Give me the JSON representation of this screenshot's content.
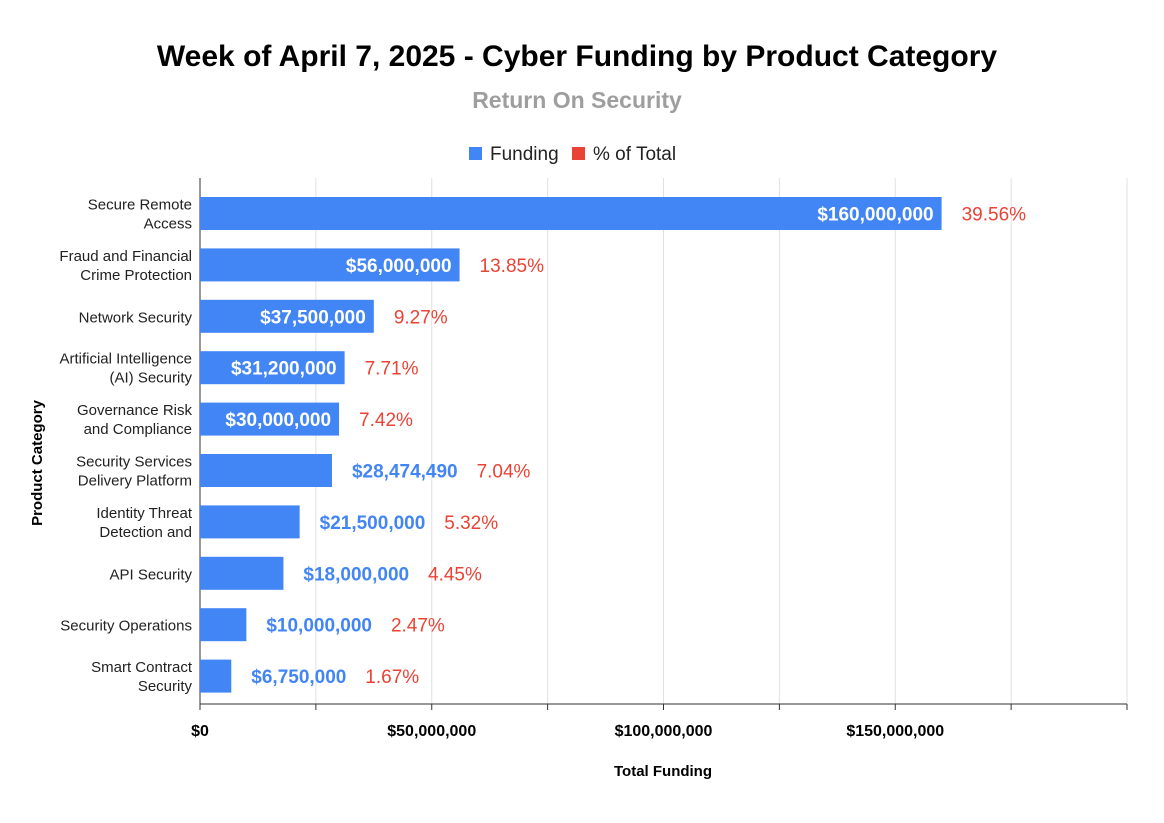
{
  "chart_data": {
    "type": "bar",
    "orientation": "horizontal",
    "title": "Week of April 7, 2025 - Cyber Funding by Product Category",
    "subtitle": "Return On Security",
    "xlabel": "Total Funding",
    "ylabel": "Product Category",
    "legend": {
      "placement": "top-center",
      "items": [
        {
          "label": "Funding",
          "color": "#4285f4"
        },
        {
          "label": "% of Total",
          "color": "#ea4335"
        }
      ]
    },
    "categories": [
      [
        "Secure Remote",
        "Access"
      ],
      [
        "Fraud and Financial",
        "Crime Protection"
      ],
      [
        "Network Security"
      ],
      [
        "Artificial Intelligence",
        "(AI) Security"
      ],
      [
        "Governance Risk",
        "and Compliance"
      ],
      [
        "Security Services",
        "Delivery Platform"
      ],
      [
        "Identity Threat",
        "Detection and"
      ],
      [
        "API Security"
      ],
      [
        "Security Operations"
      ],
      [
        "Smart Contract",
        "Security"
      ]
    ],
    "series": [
      {
        "name": "Funding",
        "color": "#4285f4",
        "values": [
          160000000,
          56000000,
          37500000,
          31200000,
          30000000,
          28474490,
          21500000,
          18000000,
          10000000,
          6750000
        ],
        "value_labels": [
          "$160,000,000",
          "$56,000,000",
          "$37,500,000",
          "$31,200,000",
          "$30,000,000",
          "$28,474,490",
          "$21,500,000",
          "$18,000,000",
          "$10,000,000",
          "$6,750,000"
        ]
      },
      {
        "name": "% of Total",
        "color": "#ea4335",
        "values": [
          39.56,
          13.85,
          9.27,
          7.71,
          7.42,
          7.04,
          5.32,
          4.45,
          2.47,
          1.67
        ],
        "value_labels": [
          "39.56%",
          "13.85%",
          "9.27%",
          "7.71%",
          "7.42%",
          "7.04%",
          "5.32%",
          "4.45%",
          "2.47%",
          "1.67%"
        ]
      }
    ],
    "xlim": [
      0,
      200000000
    ],
    "x_ticks": [
      0,
      50000000,
      100000000,
      150000000
    ],
    "x_tick_labels": [
      "$0",
      "$50,000,000",
      "$100,000,000",
      "$150,000,000"
    ],
    "grid": true
  }
}
